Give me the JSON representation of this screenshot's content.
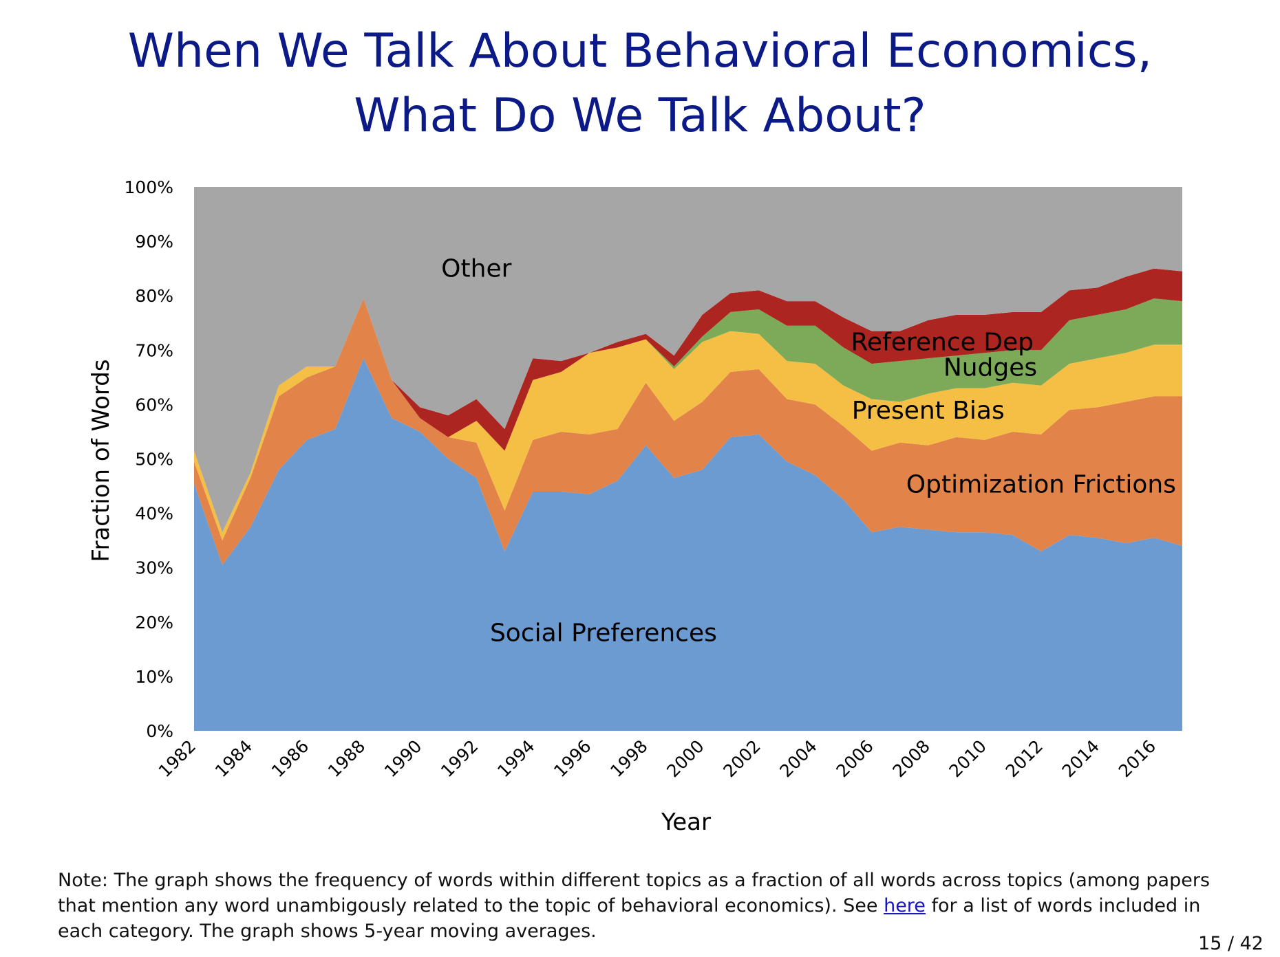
{
  "title": {
    "line1": "When We Talk About Behavioral Economics,",
    "line2": "What Do We Talk About?"
  },
  "note": {
    "before_link": "Note: The graph shows the frequency of words within different topics as a fraction of all words across topics (among papers that mention any word unambigously related to the topic of behavioral economics). See ",
    "link_text": "here",
    "after_link": " for a list of words included in each category. The graph shows 5-year moving averages."
  },
  "page_number": "15 / 42",
  "chart_data": {
    "type": "area",
    "stacked": true,
    "xlabel": "Year",
    "ylabel": "Fraction of Words",
    "ylim": [
      0,
      100
    ],
    "y_tick_labels": [
      "0%",
      "10%",
      "20%",
      "30%",
      "40%",
      "50%",
      "60%",
      "70%",
      "80%",
      "90%",
      "100%"
    ],
    "x_tick_labels": [
      "1982",
      "1984",
      "1986",
      "1988",
      "1990",
      "1992",
      "1994",
      "1996",
      "1998",
      "2000",
      "2002",
      "2004",
      "2006",
      "2008",
      "2010",
      "2012",
      "2014",
      "2016"
    ],
    "x": [
      1982,
      1983,
      1984,
      1985,
      1986,
      1987,
      1988,
      1989,
      1990,
      1991,
      1992,
      1993,
      1994,
      1995,
      1996,
      1997,
      1998,
      1999,
      2000,
      2001,
      2002,
      2003,
      2004,
      2005,
      2006,
      2007,
      2008,
      2009,
      2010,
      2011,
      2012,
      2013,
      2014,
      2015,
      2016,
      2017
    ],
    "series": [
      {
        "name": "Social Preferences",
        "color": "#6b9bd1",
        "values": [
          45.5,
          30.5,
          37.5,
          48,
          53.5,
          55.5,
          68.5,
          57.5,
          55,
          50,
          46.5,
          33,
          44,
          44,
          43.5,
          46,
          52.5,
          46.5,
          48,
          54,
          54.5,
          49.5,
          47,
          42.5,
          36.5,
          37.5,
          37,
          36.5,
          36.5,
          36,
          33,
          36,
          35.5,
          34.5,
          35.5,
          34
        ]
      },
      {
        "name": "Optimization Frictions",
        "color": "#e2834a",
        "values": [
          4,
          4.5,
          9,
          13.5,
          11.5,
          11.5,
          11,
          7,
          2.5,
          4,
          6.5,
          7.5,
          9.5,
          11,
          11,
          9.5,
          11.5,
          10.5,
          12.5,
          12,
          12,
          11.5,
          13,
          13.5,
          15,
          15.5,
          15.5,
          17.5,
          17,
          19,
          21.5,
          23,
          24,
          26,
          26,
          27.5
        ]
      },
      {
        "name": "Present Bias",
        "color": "#f5bf45",
        "values": [
          2,
          1.5,
          1,
          2,
          2,
          0,
          0,
          0,
          0,
          0,
          4,
          11,
          11,
          11,
          15,
          15,
          8,
          9.5,
          11,
          7.5,
          6.5,
          7,
          7.5,
          7.5,
          9.5,
          7.5,
          9.5,
          9,
          9.5,
          9,
          9,
          8.5,
          9,
          9,
          9.5,
          9.5
        ]
      },
      {
        "name": "Nudges",
        "color": "#7daa58",
        "values": [
          0,
          0,
          0,
          0,
          0,
          0,
          0,
          0,
          0,
          0,
          0,
          0,
          0,
          0,
          0,
          0,
          0,
          0.5,
          1,
          3.5,
          4.5,
          6.5,
          7,
          7,
          6.5,
          7.5,
          6.5,
          6,
          6.5,
          6,
          6.5,
          8,
          8,
          8,
          8.5,
          8
        ]
      },
      {
        "name": "Reference Dep",
        "color": "#ad2520",
        "values": [
          0,
          0,
          0,
          0,
          0,
          0,
          0,
          0,
          2,
          4,
          4,
          4,
          4,
          2,
          0,
          1,
          1,
          2,
          4,
          3.5,
          3.5,
          4.5,
          4.5,
          5.5,
          6,
          5.5,
          7,
          7.5,
          7,
          7,
          7,
          5.5,
          5,
          6,
          5.5,
          5.5
        ]
      },
      {
        "name": "Other",
        "color": "#a6a6a6",
        "values": [
          48.5,
          63.5,
          52.5,
          36.5,
          33,
          33,
          20.5,
          35.5,
          40.5,
          42,
          39,
          44.5,
          31.5,
          32,
          30.5,
          28.5,
          27,
          31,
          23.5,
          19.5,
          19,
          21,
          21,
          24,
          26.5,
          26.5,
          24.5,
          23.5,
          23.5,
          23,
          23,
          19,
          18.5,
          16.5,
          15,
          15.5
        ]
      }
    ]
  }
}
